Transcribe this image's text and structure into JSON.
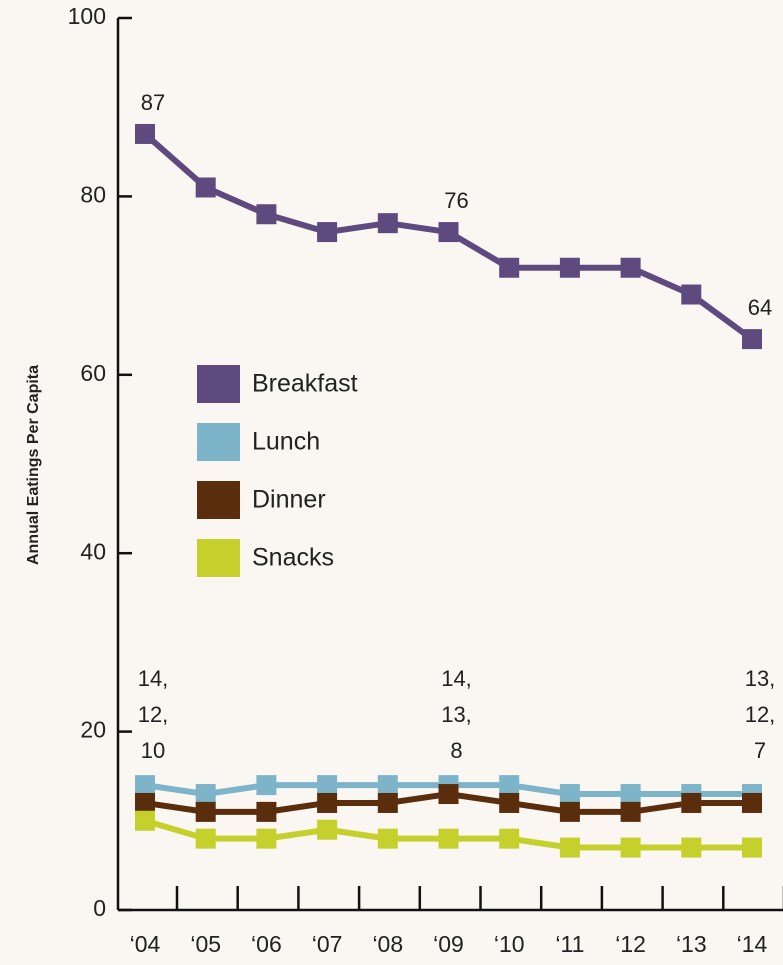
{
  "chart_data": {
    "type": "line",
    "y_label": "Annual Eatings Per Capita",
    "categories": [
      "‘04",
      "‘05",
      "‘06",
      "‘07",
      "‘08",
      "‘09",
      "‘10",
      "‘11",
      "‘12",
      "‘13",
      "‘14"
    ],
    "series": [
      {
        "name": "Breakfast",
        "color": "#5f4a7f",
        "values": [
          87,
          81,
          78,
          76,
          77,
          76,
          72,
          72,
          72,
          69,
          64
        ],
        "value_labels": [
          "87",
          null,
          null,
          null,
          null,
          "76",
          null,
          null,
          null,
          null,
          "64"
        ]
      },
      {
        "name": "Lunch",
        "color": "#7db4c9",
        "values": [
          14,
          13,
          14,
          14,
          14,
          14,
          14,
          13,
          13,
          13,
          13
        ],
        "value_labels": [
          "14,",
          null,
          null,
          null,
          null,
          "14,",
          null,
          null,
          null,
          null,
          "13,"
        ]
      },
      {
        "name": "Dinner",
        "color": "#5a2d0c",
        "values": [
          12,
          11,
          11,
          12,
          12,
          13,
          12,
          11,
          11,
          12,
          12
        ],
        "value_labels": [
          "12,",
          null,
          null,
          null,
          null,
          "13,",
          null,
          null,
          null,
          null,
          "12,"
        ]
      },
      {
        "name": "Snacks",
        "color": "#c5d02c",
        "values": [
          10,
          8,
          8,
          9,
          8,
          8,
          8,
          7,
          7,
          7,
          7
        ],
        "value_labels": [
          "10",
          null,
          null,
          null,
          null,
          "8",
          null,
          null,
          null,
          null,
          "7"
        ]
      }
    ],
    "ylim": [
      0,
      100
    ],
    "yticks": [
      0,
      20,
      40,
      60,
      80,
      100
    ],
    "grid": false,
    "legend": "left"
  }
}
